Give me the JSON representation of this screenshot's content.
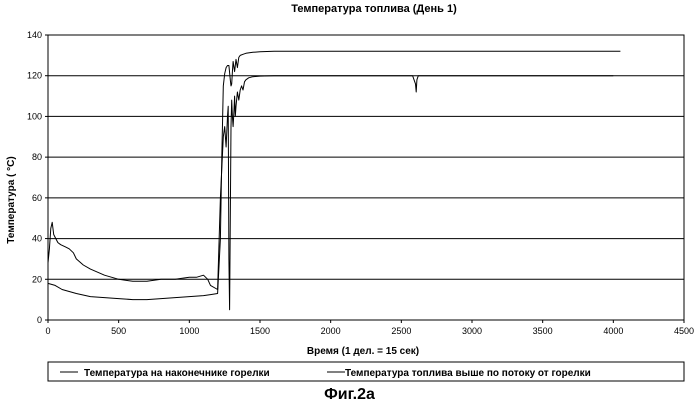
{
  "figure_caption": "Фиг.2a",
  "chart_data": {
    "type": "line",
    "title": "Температура топлива (День 1)",
    "xlabel": "Время (1 дел. = 15 сек)",
    "ylabel": "Температура ( °C)",
    "xlim": [
      0,
      4500
    ],
    "ylim": [
      0,
      140
    ],
    "xticks": [
      0,
      500,
      1000,
      1500,
      2000,
      2500,
      3000,
      3500,
      4000,
      4500
    ],
    "yticks": [
      0,
      20,
      40,
      60,
      80,
      100,
      120,
      140
    ],
    "grid": "horizontal",
    "legend_position": "bottom",
    "series": [
      {
        "name": "Температура на наконечнике горелки",
        "color": "#000000",
        "x": [
          0,
          10,
          20,
          30,
          40,
          55,
          70,
          90,
          120,
          150,
          180,
          200,
          250,
          300,
          400,
          500,
          600,
          700,
          800,
          900,
          1000,
          1050,
          1100,
          1130,
          1150,
          1200,
          1220,
          1240,
          1250,
          1260,
          1270,
          1275,
          1280,
          1285,
          1290,
          1295,
          1300,
          1305,
          1310,
          1315,
          1320,
          1325,
          1330,
          1340,
          1350,
          1360,
          1370,
          1380,
          1390,
          1400,
          1420,
          1450,
          1500,
          1600,
          1800,
          2000,
          2500,
          2580,
          2600,
          2605,
          2610,
          2620,
          3000,
          3500,
          4000
        ],
        "y": [
          28,
          35,
          45,
          48,
          42,
          40,
          38,
          37,
          36,
          35,
          33,
          30,
          27,
          25,
          22,
          20,
          19,
          19,
          20,
          20,
          21,
          21,
          22,
          20,
          17,
          15,
          60,
          90,
          95,
          85,
          100,
          105,
          30,
          5,
          50,
          95,
          108,
          100,
          95,
          102,
          110,
          100,
          105,
          112,
          108,
          113,
          115,
          113,
          117,
          118,
          119,
          119.5,
          119.8,
          120,
          120,
          120,
          120,
          120,
          116,
          112,
          118,
          120,
          120,
          120,
          120
        ]
      },
      {
        "name": "Температура топлива выше по потоку от горелки",
        "color": "#000000",
        "x": [
          0,
          50,
          100,
          150,
          200,
          300,
          400,
          500,
          600,
          700,
          800,
          900,
          1000,
          1100,
          1150,
          1200,
          1220,
          1230,
          1240,
          1250,
          1260,
          1270,
          1280,
          1290,
          1295,
          1300,
          1305,
          1310,
          1320,
          1330,
          1340,
          1350,
          1360,
          1380,
          1400,
          1450,
          1500,
          1600,
          1800,
          2000,
          2500,
          3000,
          3500,
          4000,
          4050
        ],
        "y": [
          18,
          17,
          15,
          14,
          13,
          11.5,
          11,
          10.5,
          10,
          10,
          10.5,
          11,
          11.5,
          12,
          12.5,
          13,
          40,
          80,
          115,
          121,
          124,
          125,
          125,
          118,
          115,
          116,
          122,
          127,
          122,
          128,
          124,
          129,
          130,
          130.5,
          131,
          131.5,
          131.8,
          132,
          132,
          132,
          132,
          132,
          132,
          132,
          132
        ]
      }
    ]
  }
}
